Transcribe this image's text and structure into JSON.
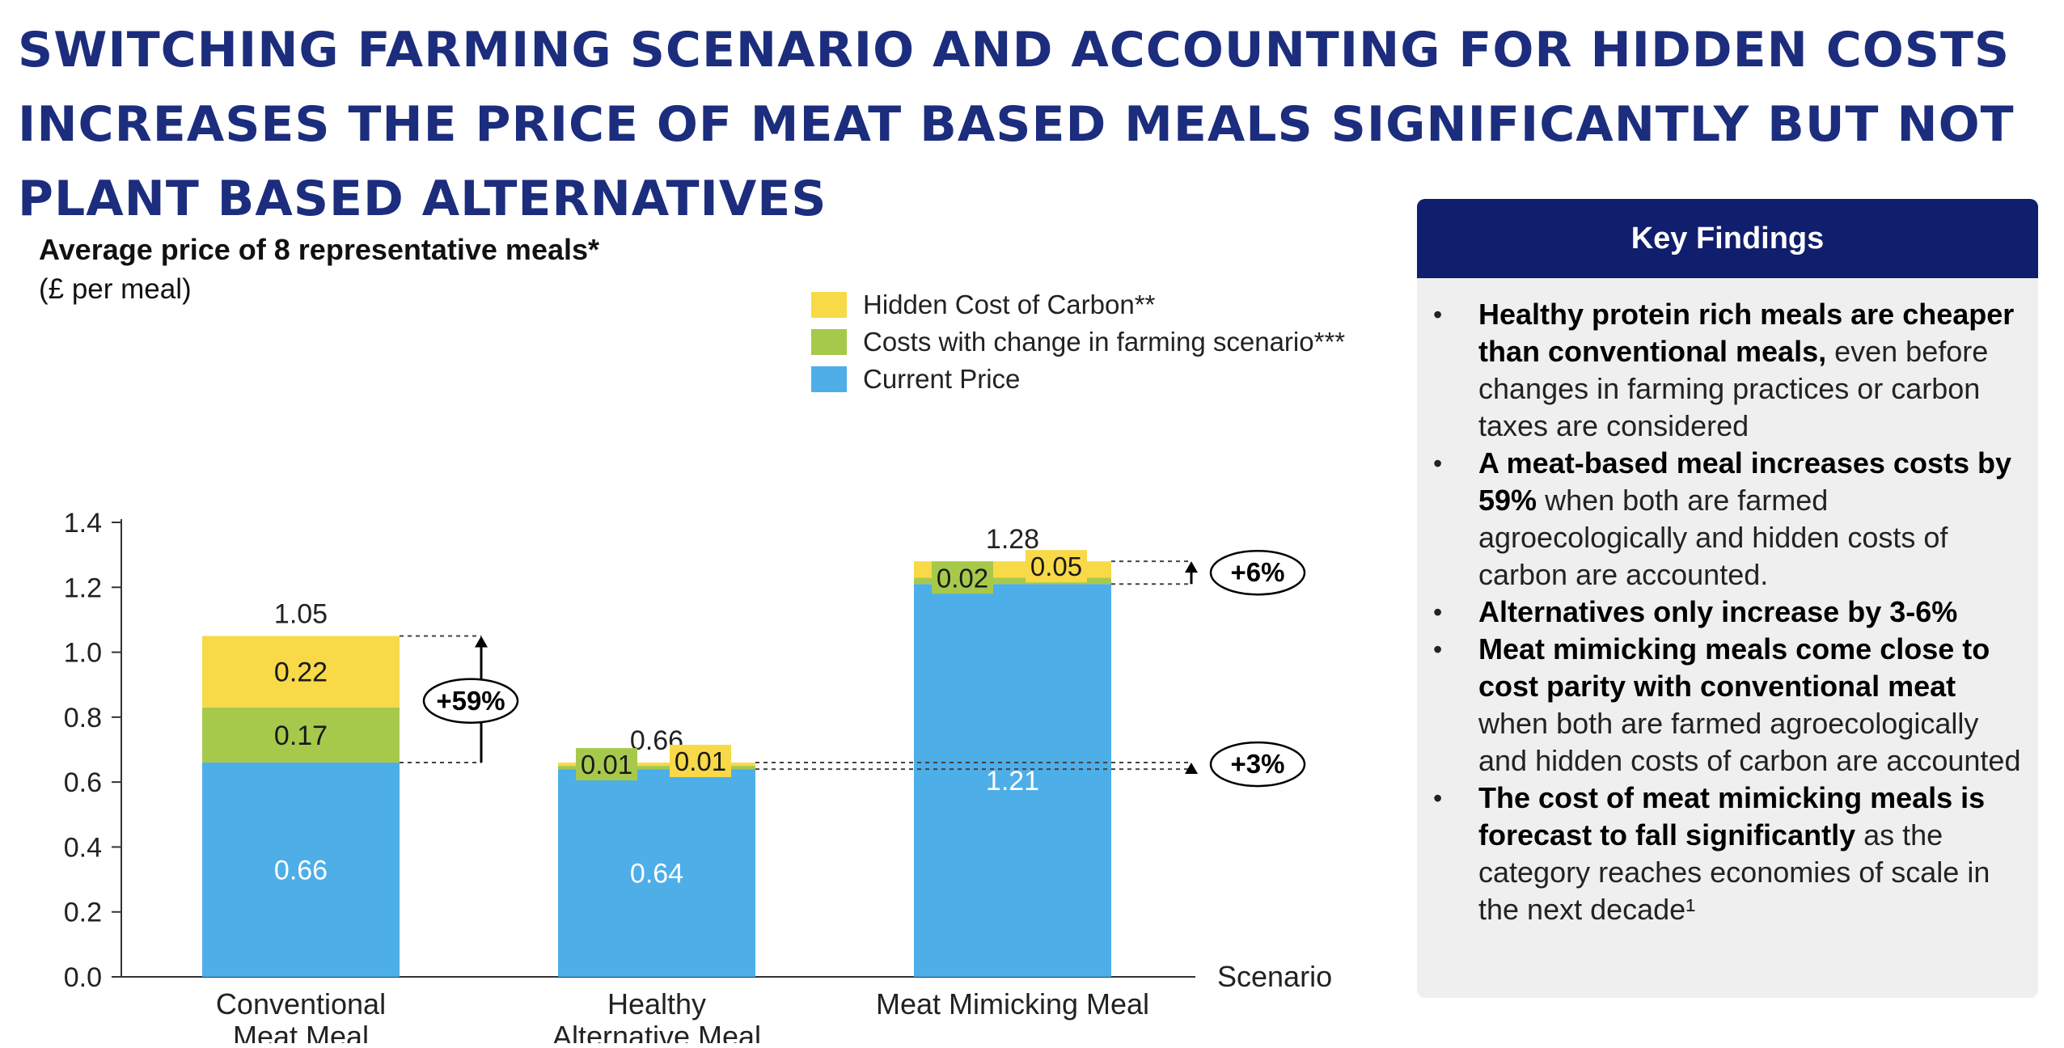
{
  "title": "SWITCHING FARMING SCENARIO AND ACCOUNTING FOR HIDDEN COSTS INCREASES THE PRICE OF MEAT BASED MEALS SIGNIFICANTLY BUT NOT PLANT BASED ALTERNATIVES",
  "chart_heading": "Average price of 8 representative meals*",
  "chart_unit": "(£ per meal)",
  "chart_data": {
    "type": "bar",
    "stacked": true,
    "categories": [
      "Conventional Meat Meal",
      "Healthy Alternative Meal",
      "Meat Mimicking Meal"
    ],
    "category_lines": [
      [
        "Conventional",
        "Meat Meal"
      ],
      [
        "Healthy",
        "Alternative Meal"
      ],
      [
        "Meat Mimicking Meal"
      ]
    ],
    "series": [
      {
        "name": "Current Price",
        "values": [
          0.66,
          0.64,
          1.21
        ],
        "labels": [
          "0.66",
          "0.64",
          "1.21"
        ],
        "color": "#4daee8",
        "label_color": "#ffffff"
      },
      {
        "name": "Costs with change in farming scenario***",
        "values": [
          0.17,
          0.01,
          0.02
        ],
        "labels": [
          "0.17",
          "0.01",
          "0.02"
        ],
        "color": "#a6c94c",
        "label_color": "#1a1a1a"
      },
      {
        "name": "Hidden Cost of Carbon**",
        "values": [
          0.22,
          0.01,
          0.05
        ],
        "labels": [
          "0.22",
          "0.01",
          "0.05"
        ],
        "color": "#f8d948",
        "label_color": "#1a1a1a"
      }
    ],
    "legend_order": [
      "Hidden Cost of Carbon**",
      "Costs with change in farming scenario***",
      "Current Price"
    ],
    "totals": [
      "1.05",
      "0.66",
      "1.28"
    ],
    "ylim": [
      0,
      1.4
    ],
    "yticks": [
      "0.0",
      "0.2",
      "0.4",
      "0.6",
      "0.8",
      "1.0",
      "1.2",
      "1.4"
    ],
    "xlabel": "Scenario",
    "ylabel": "",
    "grid": false,
    "legend_position": "top-right",
    "annotations": [
      {
        "text": "+59%",
        "category": 0,
        "from": 0.66,
        "to": 1.05
      },
      {
        "text": "+3%",
        "category": 1,
        "from": 0.64,
        "to": 0.66
      },
      {
        "text": "+6%",
        "category": 2,
        "from": 1.21,
        "to": 1.28
      }
    ]
  },
  "key_findings": {
    "header": "Key Findings",
    "items": [
      {
        "bold": "Healthy protein rich meals are cheaper than conventional meals,",
        "text": " even before changes in farming practices or carbon taxes are considered"
      },
      {
        "bold": "A meat-based meal increases costs by 59%",
        "text": "  when both are farmed agroecologically and hidden costs of carbon are accounted."
      },
      {
        "bold": "Alternatives only increase by 3-6%",
        "text": ""
      },
      {
        "bold": "Meat mimicking meals come close to cost parity with conventional meat",
        "text": " when both are farmed agroecologically and hidden costs of carbon are accounted"
      },
      {
        "bold": "The cost of meat mimicking meals is forecast to fall significantly",
        "text": " as the category reaches economies of scale in the next decade¹"
      }
    ]
  }
}
